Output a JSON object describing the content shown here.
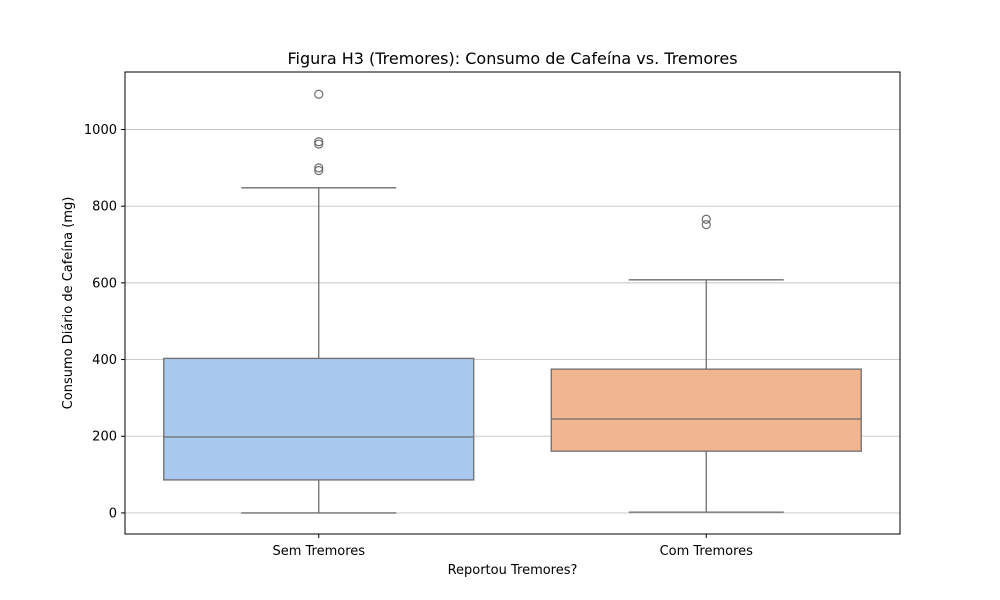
{
  "chart_data": {
    "type": "box",
    "title": "Figura H3 (Tremores): Consumo de Cafeína vs. Tremores",
    "xlabel": "Reportou Tremores?",
    "ylabel": "Consumo Diário de Cafeína (mg)",
    "ylim": [
      -55,
      1150
    ],
    "yticks": [
      0,
      200,
      400,
      600,
      800,
      1000
    ],
    "grid": {
      "y": true,
      "x": false
    },
    "categories": [
      "Sem Tremores",
      "Com Tremores"
    ],
    "boxes": [
      {
        "category": "Sem Tremores",
        "color": "#a9c8ed",
        "whisker_low": 0,
        "q1": 86,
        "median": 198,
        "q3": 403,
        "whisker_high": 848,
        "outliers": [
          893,
          900,
          962,
          968,
          1092
        ]
      },
      {
        "category": "Com Tremores",
        "color": "#f1b58f",
        "whisker_low": 2,
        "q1": 161,
        "median": 245,
        "q3": 375,
        "whisker_high": 608,
        "outliers": [
          752,
          766
        ]
      }
    ]
  }
}
